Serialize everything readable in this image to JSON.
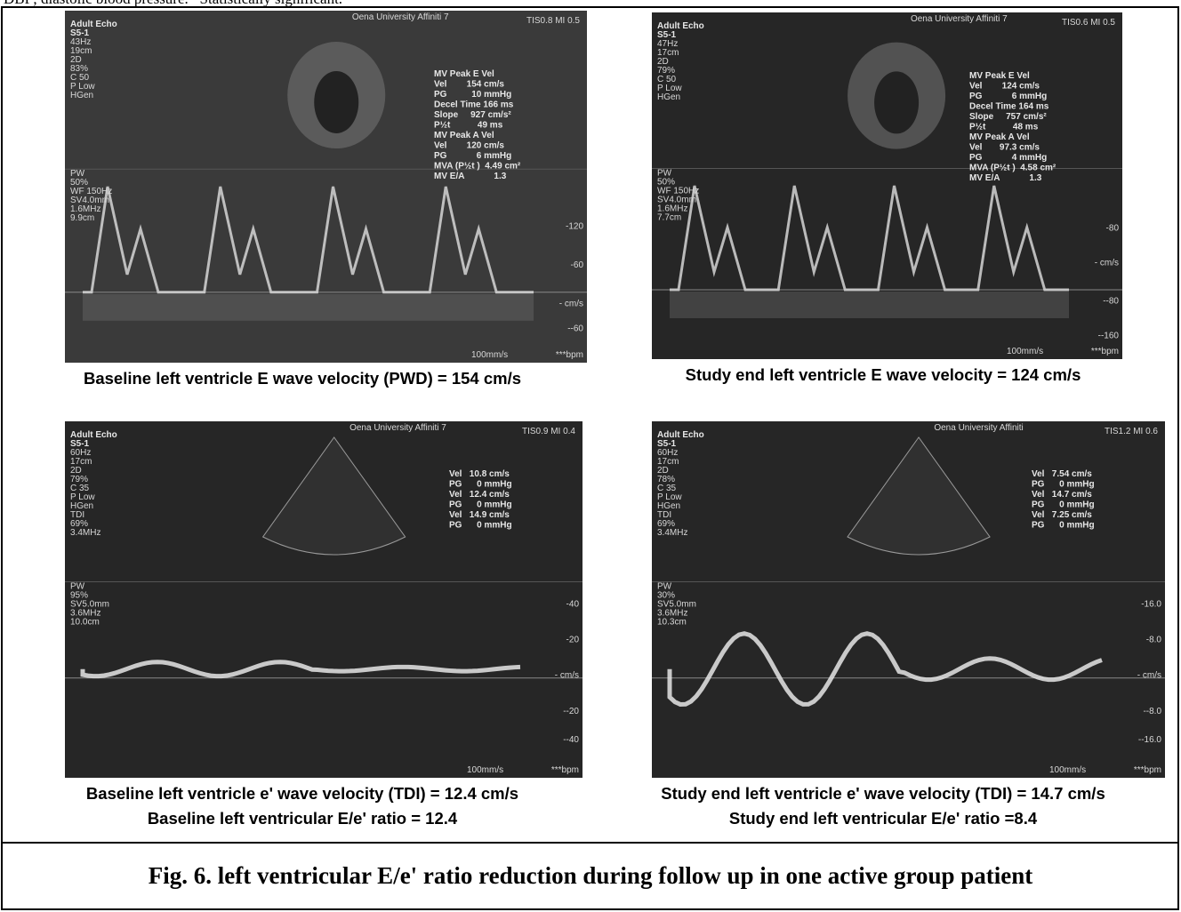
{
  "header_note": "DBP; diastolic blood pressure. *Statistically significant.",
  "panels": [
    {
      "header": [
        "Oena University   Affiniti 7",
        "TIS0.8   MI 0.5"
      ],
      "settings": [
        "Adult Echo",
        "S5-1",
        "43Hz",
        "19cm",
        "2D",
        "83%",
        "C 50",
        "P Low",
        "HGen"
      ],
      "doppler": [
        "PW",
        "50%",
        "WF 150Hz",
        "SV4.0mm",
        "1.6MHz",
        "9.9cm"
      ],
      "measurements": [
        "MV Peak E Vel",
        "Vel        154 cm/s",
        "PG          10 mmHg",
        "Decel Time 166 ms",
        "Slope     927 cm/s²",
        "P½t           49 ms",
        "MV Peak A Vel",
        "Vel        120 cm/s",
        "PG            6 mmHg",
        "MVA (P½t )  4.49 cm²",
        "MV E/A            1.3"
      ],
      "scale": [
        "-120",
        "-60",
        "- cm/s",
        "--60"
      ],
      "footer": [
        "100mm/s",
        "***bpm"
      ],
      "caption": [
        "Baseline left ventricle E wave velocity (PWD) = 154 cm/s"
      ]
    },
    {
      "header": [
        "Oena University   Affiniti 7",
        "TIS0.6   MI 0.5"
      ],
      "settings": [
        "Adult Echo",
        "S5-1",
        "47Hz",
        "17cm",
        "2D",
        "79%",
        "C 50",
        "P Low",
        "HGen"
      ],
      "doppler": [
        "PW",
        "50%",
        "WF 150Hz",
        "SV4.0mm",
        "1.6MHz",
        "7.7cm"
      ],
      "measurements": [
        "MV Peak E Vel",
        "Vel        124 cm/s",
        "PG            6 mmHg",
        "Decel Time 164 ms",
        "Slope     757 cm/s²",
        "P½t           48 ms",
        "MV Peak A Vel",
        "Vel       97.3 cm/s",
        "PG            4 mmHg",
        "MVA (P½t )  4.58 cm²",
        "MV E/A            1.3"
      ],
      "scale": [
        "-80",
        "- cm/s",
        "--80",
        "--160"
      ],
      "footer": [
        "100mm/s",
        "***bpm"
      ],
      "caption": [
        "Study end left ventricle E wave velocity = 124 cm/s"
      ]
    },
    {
      "header": [
        "Oena University   Affiniti 7",
        "TIS0.9   MI 0.4"
      ],
      "settings": [
        "Adult Echo",
        "S5-1",
        "60Hz",
        "17cm",
        "2D",
        "79%",
        "C 35",
        "P Low",
        "HGen",
        "TDI",
        "69%",
        "3.4MHz"
      ],
      "doppler": [
        "PW",
        "95%",
        "SV5.0mm",
        "3.6MHz",
        "10.0cm"
      ],
      "measurements": [
        "Vel   10.8 cm/s",
        "PG      0 mmHg",
        "Vel   12.4 cm/s",
        "PG      0 mmHg",
        "Vel   14.9 cm/s",
        "PG      0 mmHg"
      ],
      "scale": [
        "-40",
        "-20",
        "- cm/s",
        "--20",
        "--40"
      ],
      "footer": [
        "100mm/s",
        "***bpm"
      ],
      "caption": [
        "Baseline left ventricle e' wave velocity (TDI) = 12.4 cm/s",
        "Baseline left ventricular E/e' ratio = 12.4"
      ]
    },
    {
      "header": [
        "Oena University   Affiniti",
        "TIS1.2   MI 0.6"
      ],
      "settings": [
        "Adult Echo",
        "S5-1",
        "60Hz",
        "17cm",
        "2D",
        "78%",
        "C 35",
        "P Low",
        "HGen",
        "TDI",
        "69%",
        "3.4MHz"
      ],
      "doppler": [
        "PW",
        "30%",
        "SV5.0mm",
        "3.6MHz",
        "10.3cm"
      ],
      "measurements": [
        "Vel   7.54 cm/s",
        "PG      0 mmHg",
        "Vel   14.7 cm/s",
        "PG      0 mmHg",
        "Vel   7.25 cm/s",
        "PG      0 mmHg"
      ],
      "scale": [
        "-16.0",
        "-8.0",
        "- cm/s",
        "--8.0",
        "--16.0"
      ],
      "footer": [
        "100mm/s",
        "***bpm"
      ],
      "caption": [
        "Study end left ventricle e' wave velocity (TDI) = 14.7 cm/s",
        "Study end left ventricular E/e' ratio =8.4"
      ]
    }
  ],
  "figure_caption": "Fig. 6. left ventricular E/e' ratio reduction during follow up in one active group patient"
}
